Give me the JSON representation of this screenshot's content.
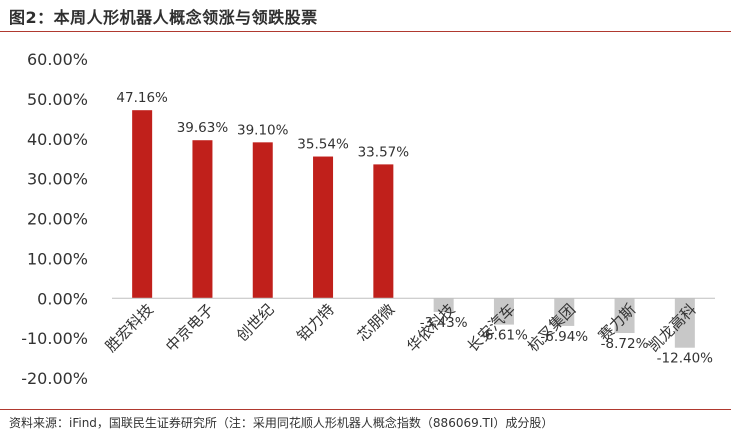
{
  "title": "图2：本周人形机器人概念领涨与领跌股票",
  "source": "资料来源：iFind，国联民生证券研究所（注：采用同花顺人形机器人概念指数（886069.TI）成分股）",
  "chart_data": {
    "type": "bar",
    "categories": [
      "胜宏科技",
      "中京电子",
      "创世纪",
      "铂力特",
      "芯朋微",
      "华依科技",
      "长安汽车",
      "杭叉集团",
      "赛力斯",
      "凯龙高科"
    ],
    "values": [
      47.16,
      39.63,
      39.1,
      35.54,
      33.57,
      -3.43,
      -6.61,
      -6.94,
      -8.72,
      -12.4
    ],
    "data_labels": [
      "47.16%",
      "39.63%",
      "39.10%",
      "35.54%",
      "33.57%",
      "-3.43%",
      "-6.61%",
      "-6.94%",
      "-8.72%",
      "-12.40%"
    ],
    "ylim": [
      -20,
      60
    ],
    "yticks": [
      "60.00%",
      "50.00%",
      "40.00%",
      "30.00%",
      "20.00%",
      "10.00%",
      "0.00%",
      "-10.00%",
      "-20.00%"
    ],
    "ytick_values": [
      60,
      50,
      40,
      30,
      20,
      10,
      0,
      -10,
      -20
    ],
    "colors": {
      "positive": "#c0201b",
      "negative": "#c8c8c8"
    },
    "grid": false
  }
}
